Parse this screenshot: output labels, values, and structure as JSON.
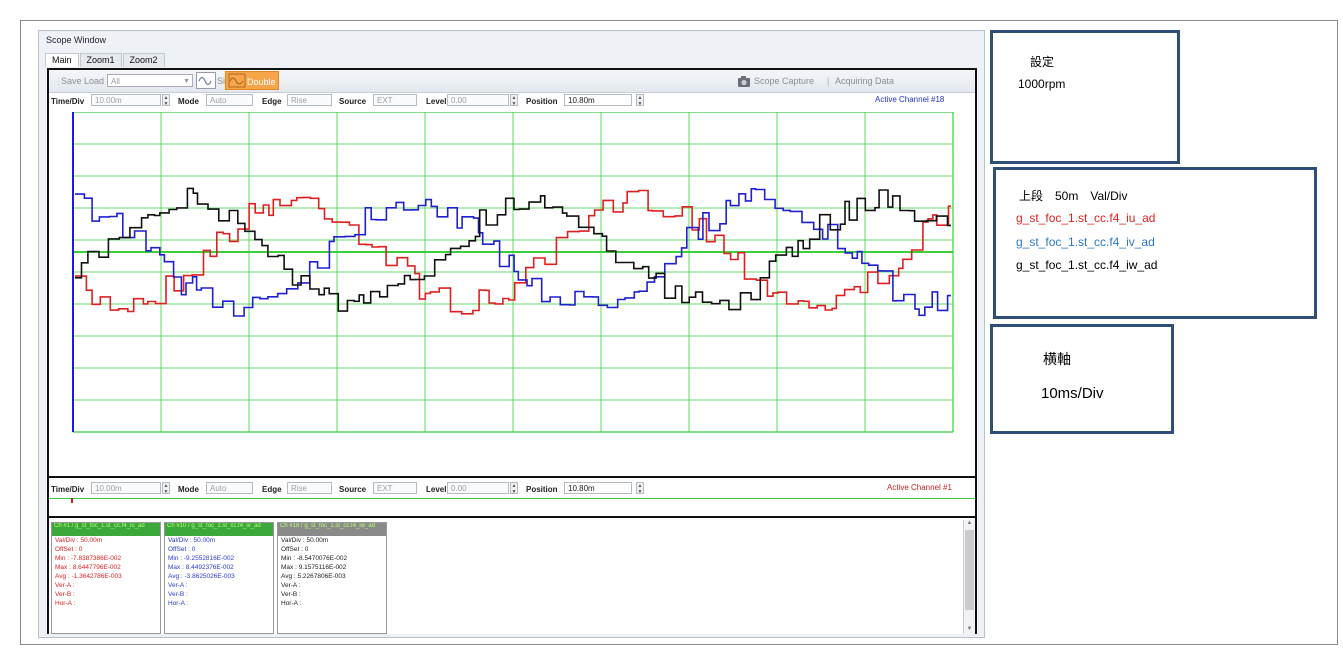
{
  "window": {
    "title": "Scope Window"
  },
  "tabs": [
    {
      "label": "Main",
      "active": true
    },
    {
      "label": "Zoom1",
      "active": false
    },
    {
      "label": "Zoom2",
      "active": false
    }
  ],
  "toolbar": {
    "save_label": "Save",
    "load_label": "Load",
    "load_value": "All",
    "single_label": "Single",
    "double_label": "Double",
    "capture_label": "Scope Capture",
    "status_label": "Acquiring Data"
  },
  "controls": {
    "time_div_label": "Time/Div",
    "time_div_value": "10.00m",
    "mode_label": "Mode",
    "mode_value": "Auto",
    "edge_label": "Edge",
    "edge_value": "Rise",
    "source_label": "Source",
    "source_value": "EXT",
    "level_label": "Level",
    "level_value": "0.00",
    "position_label": "Position",
    "position_value": "10.80m",
    "active_channel_top": "Active Channel #18",
    "active_channel_bottom": "Active Channel #1"
  },
  "colors": {
    "red": "#e02020",
    "blue": "#2020d0",
    "black": "#111111",
    "grid": "#3ccf3c",
    "note_border": "#2f4f78"
  },
  "channels": [
    {
      "header": "Ch #1 / g_st_foc_1.st_cc.f4_iu_ad",
      "val_div": "Val/Div : 50.00m",
      "offset": "OffSet : 0",
      "min": "Min : -7.8387386E-002",
      "max": "Max : 8.6447796E-002",
      "avg": "Avg : -1.3642786E-003",
      "ver_a": "Ver-A :",
      "ver_b": "Ver-B :",
      "hor_a": "Hor-A :",
      "color": "#e02020",
      "head_bg": "#3aa83a"
    },
    {
      "header": "Ch #10 / g_st_foc_1.st_cc.f4_iv_ad",
      "val_div": "Val/Div : 50.00m",
      "offset": "OffSet : 0",
      "min": "Min : -9.2552816E-002",
      "max": "Max : 8.4492376E-002",
      "avg": "Avg : -3.8625026E-003",
      "ver_a": "Ver-A :",
      "ver_b": "Ver-B :",
      "hor_a": "Hor-A :",
      "color": "#2a3ad0",
      "head_bg": "#3aa83a"
    },
    {
      "header": "Ch #18 / g_st_foc_1.st_cc.f4_iw_ad",
      "val_div": "Val/Div : 50.00m",
      "offset": "OffSet : 0",
      "min": "Min : -8.5470076E-002",
      "max": "Max : 9.1575116E-002",
      "avg": "Avg : 5.2267806E-003",
      "ver_a": "Ver-A :",
      "ver_b": "Ver-B :",
      "hor_a": "Hor-A :",
      "color": "#222222",
      "head_bg": "#8a8a8a"
    }
  ],
  "notes": {
    "settings_title": "設定",
    "settings_value": "1000rpm",
    "upper_title": "上段　50m　Val/Div",
    "signal_iu": "g_st_foc_1.st_cc.f4_iu_ad",
    "signal_iv": "g_st_foc_1.st_cc.f4_iv_ad",
    "signal_iw": "g_st_foc_1.st_cc.f4_iw_ad",
    "hor_title": "横軸",
    "hor_value": "10ms/Div"
  }
}
